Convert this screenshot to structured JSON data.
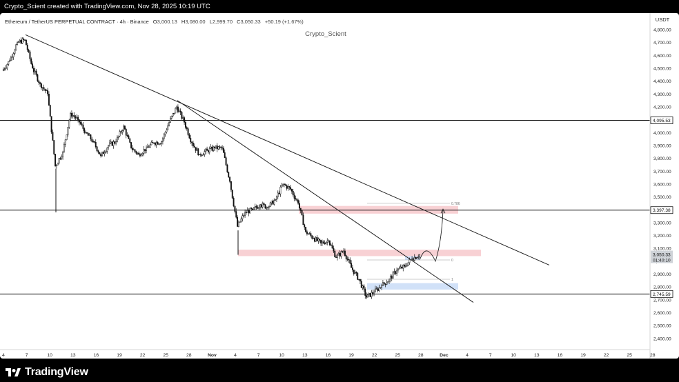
{
  "header": {
    "credit": "Crypto_Scient created with TradingView.com, Nov 28, 2025 10:19 UTC"
  },
  "legend": {
    "symbol": "Ethereum / TetherUS PERPETUAL CONTRACT · 4h · Binance",
    "open_label": "O",
    "open": "3,000.13",
    "high_label": "H",
    "high": "3,080.00",
    "low_label": "L",
    "low": "2,999.70",
    "close_label": "C",
    "close": "3,050.33",
    "change": "+50.19 (+1.67%)"
  },
  "watermark": "Crypto_Scient",
  "footer": {
    "brand": "TradingView"
  },
  "colors": {
    "candle": "#111111",
    "resistance_zone": "#f7c9cd",
    "support_zone": "#c9dcf7",
    "line": "#222222"
  },
  "chart_data": {
    "type": "candlestick",
    "currency": "USDT",
    "timeframe": "4h",
    "ylim": [
      2300,
      4850
    ],
    "y_ticks": [
      "4,800.00",
      "4,700.00",
      "4,600.00",
      "4,500.00",
      "4,400.00",
      "4,300.00",
      "4,200.00",
      "4,100.00",
      "4,000.00",
      "3,900.00",
      "3,800.00",
      "3,700.00",
      "3,600.00",
      "3,500.00",
      "3,400.00",
      "3,300.00",
      "3,200.00",
      "3,100.00",
      "3,000.00",
      "2,900.00",
      "2,800.00",
      "2,700.00",
      "2,600.00",
      "2,500.00",
      "2,400.00"
    ],
    "x_ticks": [
      "4",
      "7",
      "10",
      "13",
      "16",
      "19",
      "22",
      "25",
      "28",
      "Nov",
      "4",
      "7",
      "10",
      "13",
      "16",
      "19",
      "22",
      "25",
      "28",
      "Dec",
      "4",
      "7",
      "10",
      "13",
      "16",
      "19",
      "22",
      "25",
      "28"
    ],
    "x_ticks_bold": [
      "Nov",
      "Dec"
    ],
    "series": [
      {
        "name": "price",
        "points": [
          [
            "Oct 4",
            4480
          ],
          [
            "Oct 5",
            4560
          ],
          [
            "Oct 6",
            4700
          ],
          [
            "Oct 7",
            4720
          ],
          [
            "Oct 8",
            4500
          ],
          [
            "Oct 9",
            4380
          ],
          [
            "Oct 10",
            4300
          ],
          [
            "Oct 11",
            3740
          ],
          [
            "Oct 12",
            3850
          ],
          [
            "Oct 13",
            4150
          ],
          [
            "Oct 14",
            4100
          ],
          [
            "Oct 15",
            4000
          ],
          [
            "Oct 16",
            3930
          ],
          [
            "Oct 17",
            3820
          ],
          [
            "Oct 18",
            3900
          ],
          [
            "Oct 19",
            3930
          ],
          [
            "Oct 20",
            4050
          ],
          [
            "Oct 21",
            3880
          ],
          [
            "Oct 22",
            3830
          ],
          [
            "Oct 23",
            3880
          ],
          [
            "Oct 24",
            3920
          ],
          [
            "Oct 25",
            3930
          ],
          [
            "Oct 26",
            4080
          ],
          [
            "Oct 27",
            4200
          ],
          [
            "Oct 28",
            4080
          ],
          [
            "Oct 29",
            3920
          ],
          [
            "Oct 30",
            3830
          ],
          [
            "Oct 31",
            3860
          ],
          [
            "Nov 1",
            3880
          ],
          [
            "Nov 2",
            3880
          ],
          [
            "Nov 3",
            3620
          ],
          [
            "Nov 4",
            3270
          ],
          [
            "Nov 5",
            3380
          ],
          [
            "Nov 6",
            3400
          ],
          [
            "Nov 7",
            3440
          ],
          [
            "Nov 8",
            3420
          ],
          [
            "Nov 9",
            3480
          ],
          [
            "Nov 10",
            3600
          ],
          [
            "Nov 11",
            3560
          ],
          [
            "Nov 12",
            3450
          ],
          [
            "Nov 13",
            3230
          ],
          [
            "Nov 14",
            3180
          ],
          [
            "Nov 15",
            3140
          ],
          [
            "Nov 16",
            3160
          ],
          [
            "Nov 17",
            3030
          ],
          [
            "Nov 18",
            3080
          ],
          [
            "Nov 19",
            2950
          ],
          [
            "Nov 20",
            2860
          ],
          [
            "Nov 21",
            2720
          ],
          [
            "Nov 22",
            2760
          ],
          [
            "Nov 23",
            2810
          ],
          [
            "Nov 24",
            2860
          ],
          [
            "Nov 25",
            2930
          ],
          [
            "Nov 26",
            2960
          ],
          [
            "Nov 27",
            3020
          ],
          [
            "Nov 28",
            3050
          ]
        ]
      }
    ],
    "horizontal_levels": [
      "4,095.53",
      "3,397.38",
      "2,745.59"
    ],
    "current_price": "3,050.33",
    "countdown": "01:40:10",
    "fib_labels": [
      "0.786",
      "0",
      "1"
    ],
    "zones": [
      {
        "type": "resistance",
        "low": 3370,
        "high": 3430,
        "from": "Nov 12",
        "to": "Dec 3"
      },
      {
        "type": "resistance",
        "low": 3040,
        "high": 3090,
        "from": "Nov 4",
        "to": "Dec 6"
      },
      {
        "type": "support",
        "low": 2780,
        "high": 2830,
        "from": "Nov 21",
        "to": "Dec 3"
      },
      {
        "type": "support",
        "low": 3010,
        "high": 3040,
        "from": "Nov 26",
        "to": "Nov 28"
      }
    ],
    "trendlines": [
      {
        "from": [
          "Oct 7",
          4760
        ],
        "to": [
          "Dec 15",
          2970
        ]
      },
      {
        "from": [
          "Oct 27",
          4250
        ],
        "to": [
          "Dec 5",
          2680
        ]
      }
    ],
    "projection": [
      [
        "Nov 28",
        3020
      ],
      [
        "Nov 29",
        3080
      ],
      [
        "Nov 30",
        3000
      ],
      [
        "Dec 1",
        3180
      ],
      [
        "Dec 1",
        3400
      ]
    ]
  }
}
